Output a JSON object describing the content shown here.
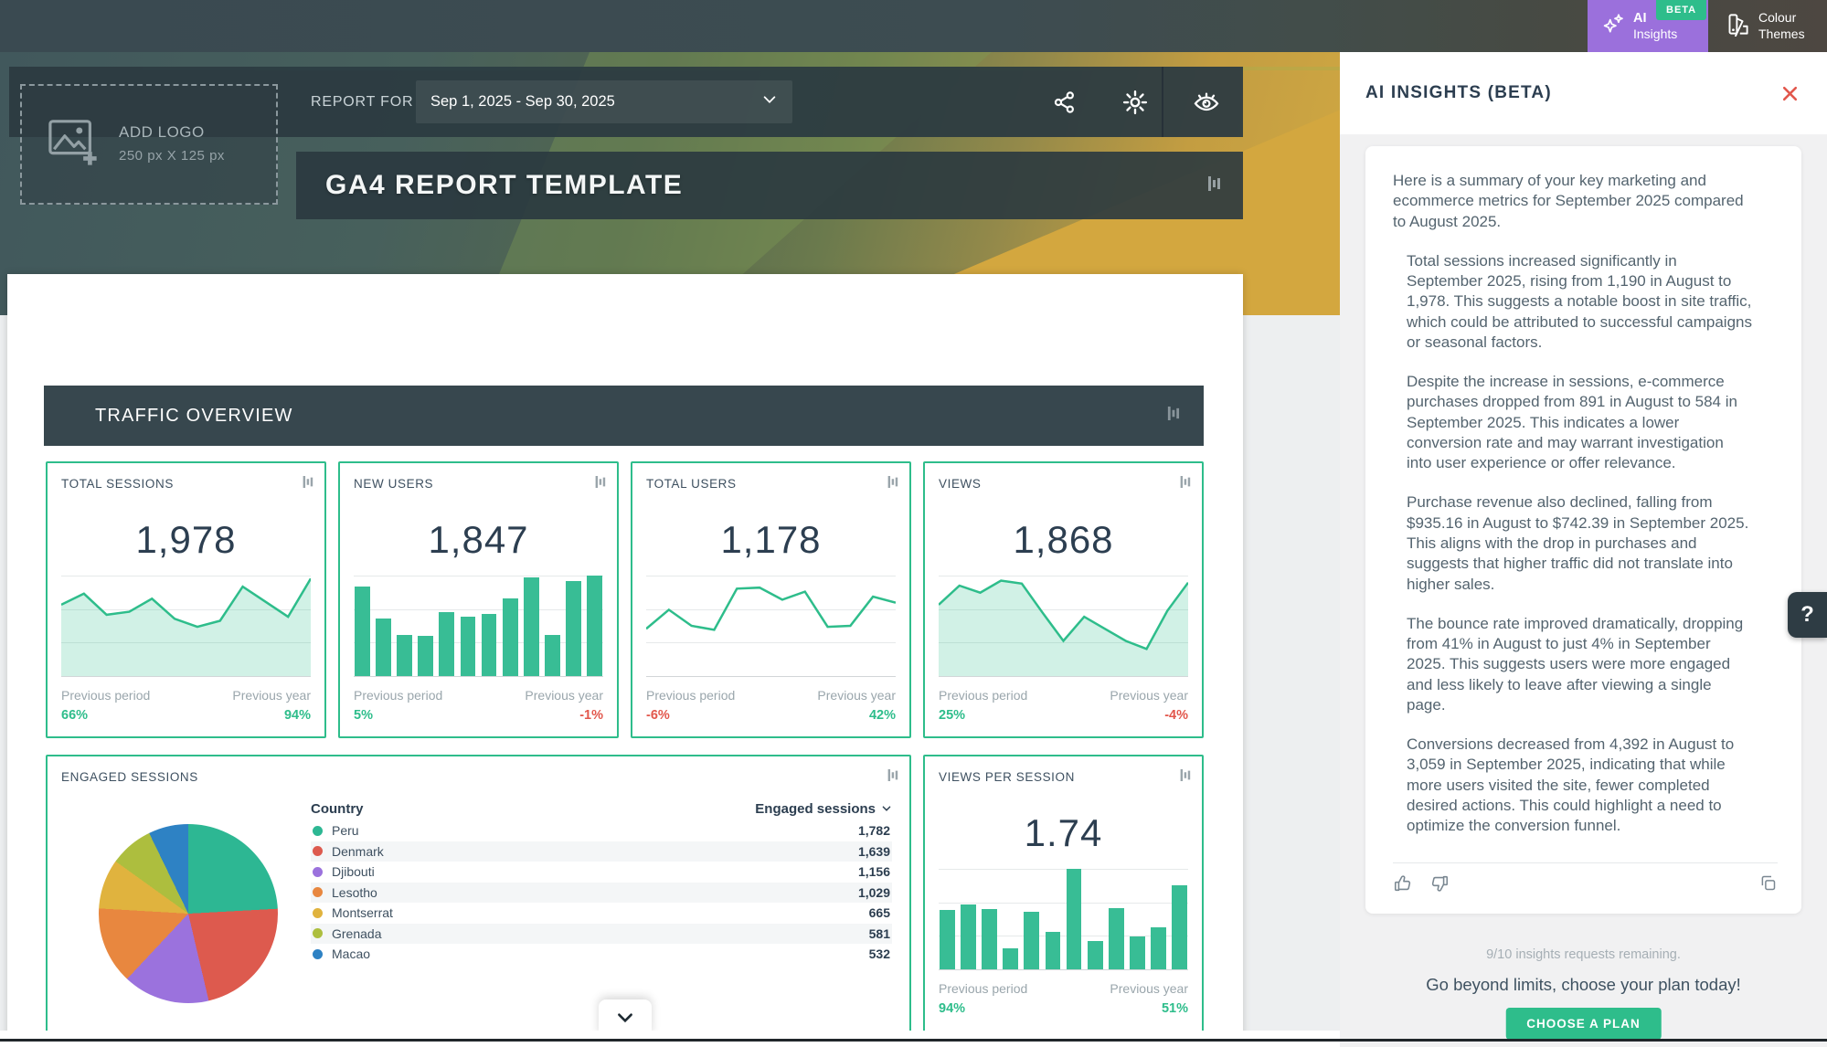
{
  "colors": {
    "accent_green": "#2ebd8b",
    "negative_red": "#e2574c",
    "chart_line": "#2ebd8b",
    "chart_fill": "rgba(46,189,139,0.22)",
    "bar_green": "#38bd95",
    "pie": [
      "#2db793",
      "#dd5a4e",
      "#9b72dd",
      "#e8873f",
      "#e0b33e",
      "#adbe3e",
      "#2e82c4"
    ],
    "ai_button_purple": "#9b70dc",
    "beta_badge_green": "#2ebd8b"
  },
  "topbar": {
    "beta": "BETA",
    "ai_line1": "AI",
    "ai_line2": "Insights",
    "themes_line1": "Colour",
    "themes_line2": "Themes"
  },
  "header": {
    "add_logo_line1": "ADD LOGO",
    "add_logo_line2": "250 px X 125 px",
    "report_for": "REPORT FOR",
    "date_range": "Sep 1, 2025 - Sep 30, 2025",
    "title": "GA4 REPORT TEMPLATE"
  },
  "section_title": "TRAFFIC OVERVIEW",
  "labels": {
    "prev_period": "Previous period",
    "prev_year": "Previous year"
  },
  "metric_cards": [
    {
      "title": "TOTAL SESSIONS",
      "value": "1,978",
      "prev_period_change": "66%",
      "prev_year_change": "94%"
    },
    {
      "title": "NEW USERS",
      "value": "1,847",
      "prev_period_change": "5%",
      "prev_year_change": "-1%"
    },
    {
      "title": "TOTAL USERS",
      "value": "1,178",
      "prev_period_change": "-6%",
      "prev_year_change": "42%"
    },
    {
      "title": "VIEWS",
      "value": "1,868",
      "prev_period_change": "25%",
      "prev_year_change": "-4%"
    }
  ],
  "engaged": {
    "title": "ENGAGED SESSIONS",
    "col1": "Country",
    "col2": "Engaged sessions",
    "rows": [
      {
        "country": "Peru",
        "value": "1,782"
      },
      {
        "country": "Denmark",
        "value": "1,639"
      },
      {
        "country": "Djibouti",
        "value": "1,156"
      },
      {
        "country": "Lesotho",
        "value": "1,029"
      },
      {
        "country": "Montserrat",
        "value": "665"
      },
      {
        "country": "Grenada",
        "value": "581"
      },
      {
        "country": "Macao",
        "value": "532"
      }
    ]
  },
  "vps": {
    "title": "VIEWS PER SESSION",
    "value": "1.74",
    "prev_period_change": "94%",
    "prev_year_change": "51%"
  },
  "ai_panel": {
    "title": "AI INSIGHTS (BETA)",
    "paragraphs": [
      "Here is a summary of your key marketing and ecommerce metrics for September 2025 compared to August 2025.",
      "Total sessions increased significantly in September 2025, rising from 1,190 in August to 1,978. This suggests a notable boost in site traffic, which could be attributed to successful campaigns or seasonal factors.",
      "Despite the increase in sessions, e-commerce purchases dropped from 891 in August to 584 in September 2025. This indicates a lower conversion rate and may warrant investigation into user experience or offer relevance.",
      "Purchase revenue also declined, falling from $935.16 in August to $742.39 in September 2025. This aligns with the drop in purchases and suggests that higher traffic did not translate into higher sales.",
      "The bounce rate improved dramatically, dropping from 41% in August to just 4% in September 2025. This suggests users were more engaged and less likely to leave after viewing a single page.",
      "Conversions decreased from 4,392 in August to 3,059 in September 2025, indicating that while more users visited the site, fewer completed desired actions. This could highlight a need to optimize the conversion funnel."
    ],
    "remaining": "9/10 insights requests remaining.",
    "cta_text": "Go beyond limits, choose your plan today!",
    "cta_button": "CHOOSE A PLAN"
  },
  "help_label": "?",
  "chart_data": [
    {
      "id": "total_sessions",
      "type": "area",
      "title": "TOTAL SESSIONS",
      "value": 1978,
      "prev_period_pct": 66,
      "prev_year_pct": 94,
      "series_relative": [
        0.71,
        0.82,
        0.61,
        0.64,
        0.77,
        0.57,
        0.49,
        0.55,
        0.89,
        0.74,
        0.59,
        0.97
      ]
    },
    {
      "id": "new_users",
      "type": "bar",
      "title": "NEW USERS",
      "value": 1847,
      "prev_period_pct": 5,
      "prev_year_pct": -1,
      "series_relative": [
        0.89,
        0.57,
        0.41,
        0.4,
        0.64,
        0.59,
        0.62,
        0.77,
        0.98,
        0.41,
        0.95,
        1.0
      ]
    },
    {
      "id": "total_users",
      "type": "line",
      "title": "TOTAL USERS",
      "value": 1178,
      "prev_period_pct": -6,
      "prev_year_pct": 42,
      "series_relative": [
        0.47,
        0.66,
        0.5,
        0.46,
        0.87,
        0.88,
        0.76,
        0.84,
        0.49,
        0.5,
        0.79,
        0.73
      ]
    },
    {
      "id": "views",
      "type": "area",
      "title": "VIEWS",
      "value": 1868,
      "prev_period_pct": 25,
      "prev_year_pct": -4,
      "series_relative": [
        0.71,
        0.9,
        0.83,
        0.95,
        0.92,
        0.63,
        0.35,
        0.59,
        0.47,
        0.35,
        0.27,
        0.65,
        0.93
      ]
    },
    {
      "id": "engaged_sessions_by_country",
      "type": "pie",
      "title": "ENGAGED SESSIONS",
      "categories": [
        "Peru",
        "Denmark",
        "Djibouti",
        "Lesotho",
        "Montserrat",
        "Grenada",
        "Macao"
      ],
      "values": [
        1782,
        1639,
        1156,
        1029,
        665,
        581,
        532
      ]
    },
    {
      "id": "views_per_session",
      "type": "bar",
      "title": "VIEWS PER SESSION",
      "value": 1.74,
      "prev_period_pct": 94,
      "prev_year_pct": 51,
      "series_relative": [
        0.59,
        0.65,
        0.6,
        0.21,
        0.57,
        0.37,
        1.0,
        0.28,
        0.61,
        0.33,
        0.42,
        0.84
      ]
    }
  ]
}
